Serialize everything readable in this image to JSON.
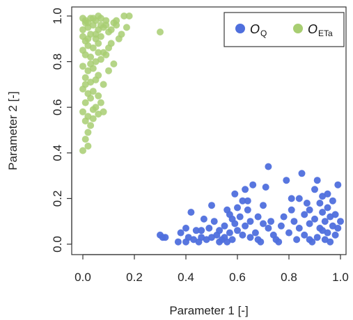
{
  "chart_data": {
    "type": "scatter",
    "xlabel": "Parameter 1 [-]",
    "ylabel": "Parameter 2 [-]",
    "xlim": [
      0.0,
      1.0
    ],
    "ylim": [
      0.0,
      1.0
    ],
    "xticks": [
      "0.0",
      "0.2",
      "0.4",
      "0.6",
      "0.8",
      "1.0"
    ],
    "yticks": [
      "0.0",
      "0.2",
      "0.4",
      "0.6",
      "0.8",
      "1.0"
    ],
    "grid": false,
    "legend_position": "top-right",
    "series": [
      {
        "name_base": "O",
        "name_sub": "Q",
        "color": "#4f6fdd",
        "points": [
          [
            0.3,
            0.04
          ],
          [
            0.31,
            0.03
          ],
          [
            0.32,
            0.03
          ],
          [
            0.37,
            0.01
          ],
          [
            0.38,
            0.05
          ],
          [
            0.4,
            0.01
          ],
          [
            0.4,
            0.07
          ],
          [
            0.42,
            0.14
          ],
          [
            0.43,
            0.02
          ],
          [
            0.44,
            0.06
          ],
          [
            0.45,
            0.01
          ],
          [
            0.46,
            0.03
          ],
          [
            0.47,
            0.11
          ],
          [
            0.48,
            0.02
          ],
          [
            0.49,
            0.07
          ],
          [
            0.5,
            0.17
          ],
          [
            0.5,
            0.03
          ],
          [
            0.51,
            0.1
          ],
          [
            0.52,
            0.04
          ],
          [
            0.53,
            0.01
          ],
          [
            0.54,
            0.02
          ],
          [
            0.55,
            0.08
          ],
          [
            0.55,
            0.03
          ],
          [
            0.56,
            0.15
          ],
          [
            0.56,
            0.01
          ],
          [
            0.57,
            0.05
          ],
          [
            0.57,
            0.13
          ],
          [
            0.58,
            0.02
          ],
          [
            0.59,
            0.22
          ],
          [
            0.59,
            0.09
          ],
          [
            0.6,
            0.16
          ],
          [
            0.6,
            0.06
          ],
          [
            0.61,
            0.12
          ],
          [
            0.62,
            0.04
          ],
          [
            0.62,
            0.19
          ],
          [
            0.63,
            0.24
          ],
          [
            0.63,
            0.08
          ],
          [
            0.64,
            0.15
          ],
          [
            0.65,
            0.03
          ],
          [
            0.65,
            0.1
          ],
          [
            0.66,
            0.26
          ],
          [
            0.67,
            0.05
          ],
          [
            0.68,
            0.12
          ],
          [
            0.68,
            0.02
          ],
          [
            0.69,
            0.01
          ],
          [
            0.7,
            0.17
          ],
          [
            0.7,
            0.09
          ],
          [
            0.71,
            0.25
          ],
          [
            0.72,
            0.34
          ],
          [
            0.72,
            0.07
          ],
          [
            0.74,
            0.04
          ],
          [
            0.75,
            0.02
          ],
          [
            0.76,
            0.01
          ],
          [
            0.77,
            0.08
          ],
          [
            0.78,
            0.12
          ],
          [
            0.79,
            0.28
          ],
          [
            0.8,
            0.05
          ],
          [
            0.81,
            0.15
          ],
          [
            0.82,
            0.1
          ],
          [
            0.83,
            0.02
          ],
          [
            0.84,
            0.2
          ],
          [
            0.84,
            0.07
          ],
          [
            0.85,
            0.31
          ],
          [
            0.86,
            0.13
          ],
          [
            0.86,
            0.04
          ],
          [
            0.87,
            0.18
          ],
          [
            0.88,
            0.09
          ],
          [
            0.88,
            0.15
          ],
          [
            0.89,
            0.01
          ],
          [
            0.9,
            0.24
          ],
          [
            0.9,
            0.11
          ],
          [
            0.91,
            0.28
          ],
          [
            0.91,
            0.03
          ],
          [
            0.92,
            0.18
          ],
          [
            0.92,
            0.07
          ],
          [
            0.93,
            0.14
          ],
          [
            0.93,
            0.21
          ],
          [
            0.94,
            0.02
          ],
          [
            0.94,
            0.1
          ],
          [
            0.95,
            0.16
          ],
          [
            0.95,
            0.05
          ],
          [
            0.96,
            0.12
          ],
          [
            0.96,
            0.01
          ],
          [
            0.97,
            0.08
          ],
          [
            0.97,
            0.19
          ],
          [
            0.98,
            0.13
          ],
          [
            0.98,
            0.04
          ],
          [
            0.99,
            0.26
          ],
          [
            0.99,
            0.07
          ],
          [
            1.0,
            0.1
          ],
          [
            0.95,
            0.22
          ],
          [
            0.93,
            0.06
          ],
          [
            0.88,
            0.02
          ],
          [
            0.81,
            0.2
          ],
          [
            0.73,
            0.1
          ],
          [
            0.64,
            0.19
          ],
          [
            0.58,
            0.11
          ],
          [
            0.53,
            0.06
          ],
          [
            0.46,
            0.06
          ],
          [
            0.41,
            0.03
          ]
        ]
      },
      {
        "name_base": "O",
        "name_sub": "ETa",
        "color": "#a8ce72",
        "points": [
          [
            0.0,
            0.99
          ],
          [
            0.01,
            0.98
          ],
          [
            0.02,
            0.97
          ],
          [
            0.03,
            0.99
          ],
          [
            0.05,
            0.98
          ],
          [
            0.06,
            1.0
          ],
          [
            0.07,
            0.99
          ],
          [
            0.09,
            0.98
          ],
          [
            0.12,
            0.97
          ],
          [
            0.16,
            1.0
          ],
          [
            0.18,
            1.0
          ],
          [
            0.02,
            0.95
          ],
          [
            0.04,
            0.96
          ],
          [
            0.06,
            0.94
          ],
          [
            0.08,
            0.95
          ],
          [
            0.1,
            0.93
          ],
          [
            0.13,
            0.96
          ],
          [
            0.15,
            0.92
          ],
          [
            0.17,
            0.95
          ],
          [
            0.3,
            0.93
          ],
          [
            0.0,
            0.91
          ],
          [
            0.01,
            0.89
          ],
          [
            0.03,
            0.92
          ],
          [
            0.05,
            0.9
          ],
          [
            0.07,
            0.91
          ],
          [
            0.11,
            0.88
          ],
          [
            0.14,
            0.9
          ],
          [
            0.02,
            0.87
          ],
          [
            0.04,
            0.86
          ],
          [
            0.06,
            0.88
          ],
          [
            0.08,
            0.84
          ],
          [
            0.1,
            0.86
          ],
          [
            0.0,
            0.85
          ],
          [
            0.01,
            0.83
          ],
          [
            0.03,
            0.82
          ],
          [
            0.05,
            0.8
          ],
          [
            0.07,
            0.81
          ],
          [
            0.09,
            0.83
          ],
          [
            0.12,
            0.79
          ],
          [
            0.0,
            0.78
          ],
          [
            0.02,
            0.76
          ],
          [
            0.04,
            0.77
          ],
          [
            0.06,
            0.74
          ],
          [
            0.1,
            0.76
          ],
          [
            0.01,
            0.73
          ],
          [
            0.03,
            0.71
          ],
          [
            0.05,
            0.72
          ],
          [
            0.08,
            0.7
          ],
          [
            0.0,
            0.68
          ],
          [
            0.02,
            0.66
          ],
          [
            0.04,
            0.67
          ],
          [
            0.06,
            0.65
          ],
          [
            0.01,
            0.62
          ],
          [
            0.03,
            0.64
          ],
          [
            0.05,
            0.6
          ],
          [
            0.07,
            0.62
          ],
          [
            0.0,
            0.58
          ],
          [
            0.02,
            0.56
          ],
          [
            0.04,
            0.59
          ],
          [
            0.06,
            0.57
          ],
          [
            0.01,
            0.54
          ],
          [
            0.03,
            0.52
          ],
          [
            0.02,
            0.49
          ],
          [
            0.01,
            0.46
          ],
          [
            0.02,
            0.43
          ],
          [
            0.0,
            0.41
          ],
          [
            0.04,
            0.55
          ],
          [
            0.08,
            0.58
          ],
          [
            0.05,
            0.92
          ],
          [
            0.09,
            0.96
          ],
          [
            0.11,
            0.94
          ],
          [
            0.13,
            0.98
          ],
          [
            0.01,
            0.97
          ],
          [
            0.04,
            0.99
          ],
          [
            0.07,
            0.96
          ],
          [
            0.02,
            0.9
          ],
          [
            0.0,
            0.94
          ],
          [
            0.06,
            0.84
          ],
          [
            0.03,
            0.79
          ],
          [
            0.01,
            0.7
          ]
        ]
      }
    ]
  }
}
